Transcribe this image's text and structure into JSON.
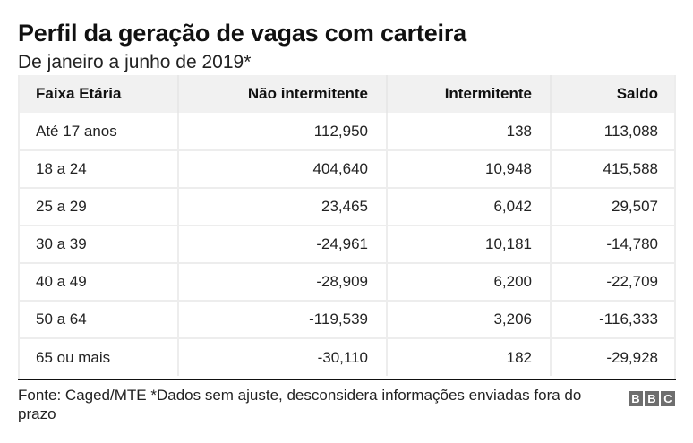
{
  "header": {
    "title": "Perfil da geração de vagas com carteira",
    "subtitle": "De janeiro a junho de 2019*"
  },
  "table": {
    "columns": [
      "Faixa Etária",
      "Não intermitente",
      "Intermitente",
      "Saldo"
    ],
    "rows": [
      [
        "Até 17 anos",
        "112,950",
        "138",
        "113,088"
      ],
      [
        "18 a 24",
        "404,640",
        "10,948",
        "415,588"
      ],
      [
        "25 a 29",
        "23,465",
        "6,042",
        "29,507"
      ],
      [
        "30 a 39",
        "-24,961",
        "10,181",
        "-14,780"
      ],
      [
        "40 a 49",
        "-28,909",
        "6,200",
        "-22,709"
      ],
      [
        "50 a 64",
        "-119,539",
        "3,206",
        "-116,333"
      ],
      [
        "65 ou mais",
        "-30,110",
        "182",
        "-29,928"
      ]
    ]
  },
  "footer": {
    "source": "Fonte: Caged/MTE *Dados sem ajuste, desconsidera informações enviadas fora do prazo"
  },
  "logo": {
    "letters": [
      "B",
      "B",
      "C"
    ],
    "icon": "bbc-logo-icon"
  },
  "colors": {
    "header_bg": "#f1f1f1",
    "grid": "#ededed",
    "rule": "#111111",
    "logo_bg": "#6e6e6e"
  }
}
